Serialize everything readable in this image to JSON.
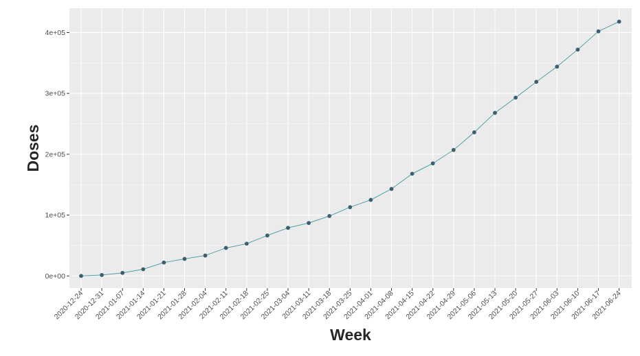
{
  "chart_data": {
    "type": "line",
    "xlabel": "Week",
    "ylabel": "Doses",
    "x": [
      "2020-12-24",
      "2020-12-31",
      "2021-01-07",
      "2021-01-14",
      "2021-01-21",
      "2021-01-28",
      "2021-02-04",
      "2021-02-11",
      "2021-02-18",
      "2021-02-25",
      "2021-03-04",
      "2021-03-11",
      "2021-03-18",
      "2021-03-25",
      "2021-04-01",
      "2021-04-08",
      "2021-04-15",
      "2021-04-22",
      "2021-04-29",
      "2021-05-06",
      "2021-05-13",
      "2021-05-20",
      "2021-05-27",
      "2021-06-03",
      "2021-06-10",
      "2021-06-17",
      "2021-06-24"
    ],
    "series": [
      {
        "values": [
          0,
          1500,
          5000,
          11000,
          22000,
          28000,
          33500,
          46000,
          53000,
          66500,
          79000,
          87000,
          98500,
          113000,
          125000,
          143000,
          168000,
          185000,
          207000,
          236000,
          268000,
          293000,
          319000,
          344000,
          372000,
          402000,
          418000
        ]
      }
    ],
    "yticks": [
      0,
      100000,
      200000,
      300000,
      400000
    ],
    "ytick_labels": [
      "0e+00",
      "1e+05",
      "2e+05",
      "3e+05",
      "4e+05"
    ],
    "ylim": [
      -20000,
      440000
    ],
    "grid": true,
    "legend": "none",
    "colors": {
      "panel_background": "#EBEBEB",
      "grid": "#FFFFFF",
      "line": "#3E9A9E",
      "point": "#3B5F6E"
    }
  }
}
